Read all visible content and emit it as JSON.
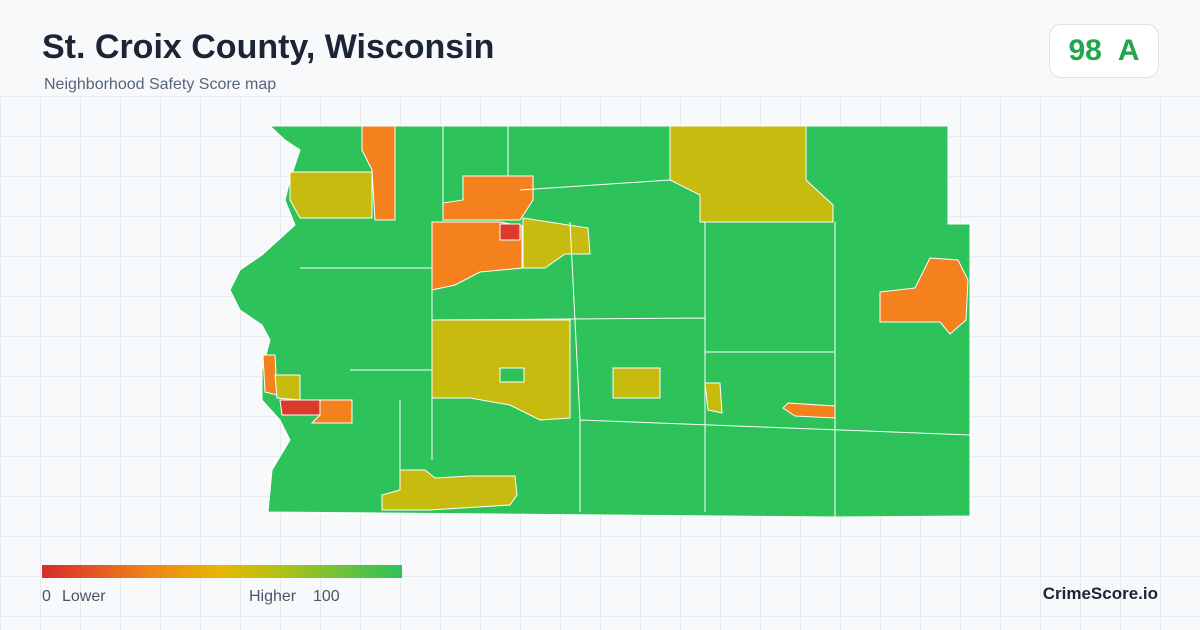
{
  "header": {
    "title": "St. Croix County, Wisconsin",
    "subtitle": "Neighborhood Safety Score map"
  },
  "score": {
    "value": 98,
    "grade": "A"
  },
  "legend": {
    "min": 0,
    "min_label": "Lower",
    "max_label": "Higher",
    "max": 100
  },
  "brand": "CrimeScore.io"
}
